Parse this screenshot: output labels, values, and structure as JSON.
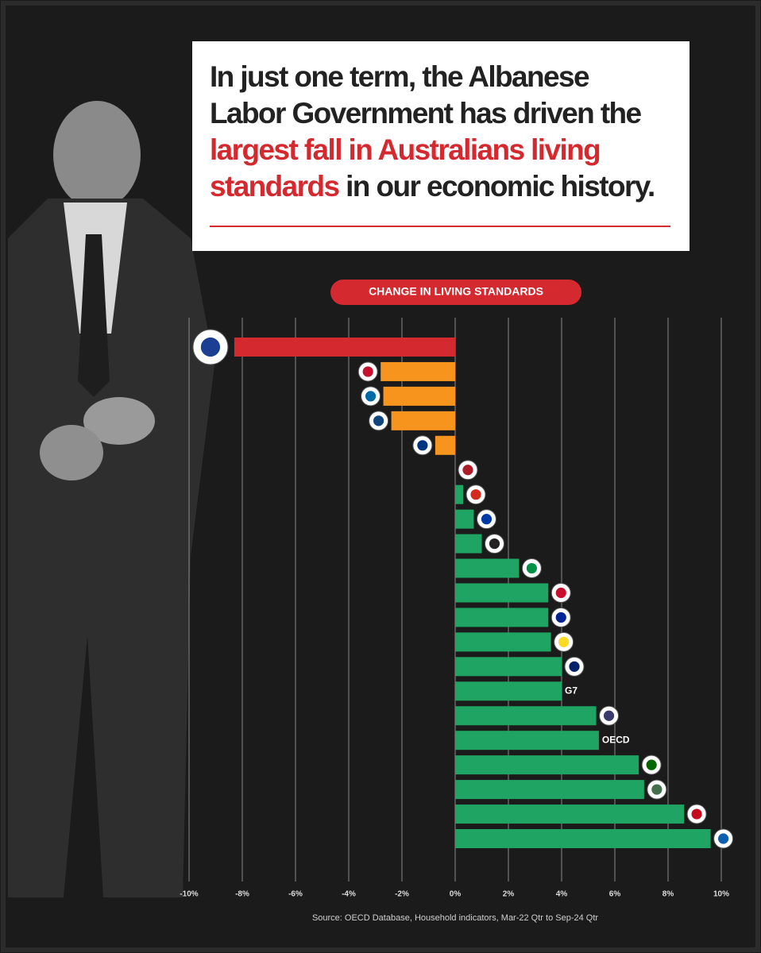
{
  "chart_data": {
    "type": "hbar",
    "title_lead": "In just one term, the Albanese Labor Government has driven the",
    "title_highlight": "largest fall in Australians living standards",
    "title_tail": "in our economic history.",
    "subtitle": "CHANGE IN LIVING STANDARDS",
    "source": "Source: OECD Database, Household indicators, Mar-22 Qtr to Sep-24 Qtr",
    "categories": [
      null,
      null,
      null,
      null,
      null,
      null,
      null,
      null,
      null,
      null,
      null,
      null,
      null,
      null,
      "G7",
      null,
      "OECD",
      null,
      null,
      null,
      null
    ],
    "values": [
      -8.3,
      -2.8,
      -2.7,
      -2.4,
      -0.75,
      0,
      0.3,
      0.7,
      1.0,
      2.4,
      3.5,
      3.5,
      3.6,
      4.0,
      4.0,
      5.3,
      5.4,
      6.9,
      7.1,
      8.6,
      9.6
    ],
    "colors": [
      "#d42a2f",
      "#f7941d",
      "#f7941d",
      "#f7941d",
      "#f7941d",
      "#1fa463",
      "#1fa463",
      "#1fa463",
      "#1fa463",
      "#1fa463",
      "#1fa463",
      "#1fa463",
      "#1fa463",
      "#1fa463",
      "#1fa463",
      "#1fa463",
      "#1fa463",
      "#1fa463",
      "#1fa463",
      "#1fa463",
      "#1fa463"
    ],
    "xlim": [
      -10,
      10
    ],
    "xticks": [
      {
        "value": -10,
        "label": "-10%"
      },
      {
        "value": -8,
        "label": "-8%"
      },
      {
        "value": -6,
        "label": "-6%"
      },
      {
        "value": -4,
        "label": "-4%"
      },
      {
        "value": -2,
        "label": "-2%"
      },
      {
        "value": 0,
        "label": "0%"
      },
      {
        "value": 2,
        "label": "2%"
      },
      {
        "value": 4,
        "label": "4%"
      },
      {
        "value": 6,
        "label": "6%"
      },
      {
        "value": 8,
        "label": "8%"
      },
      {
        "value": 10,
        "label": "10%"
      }
    ],
    "grid": true
  }
}
